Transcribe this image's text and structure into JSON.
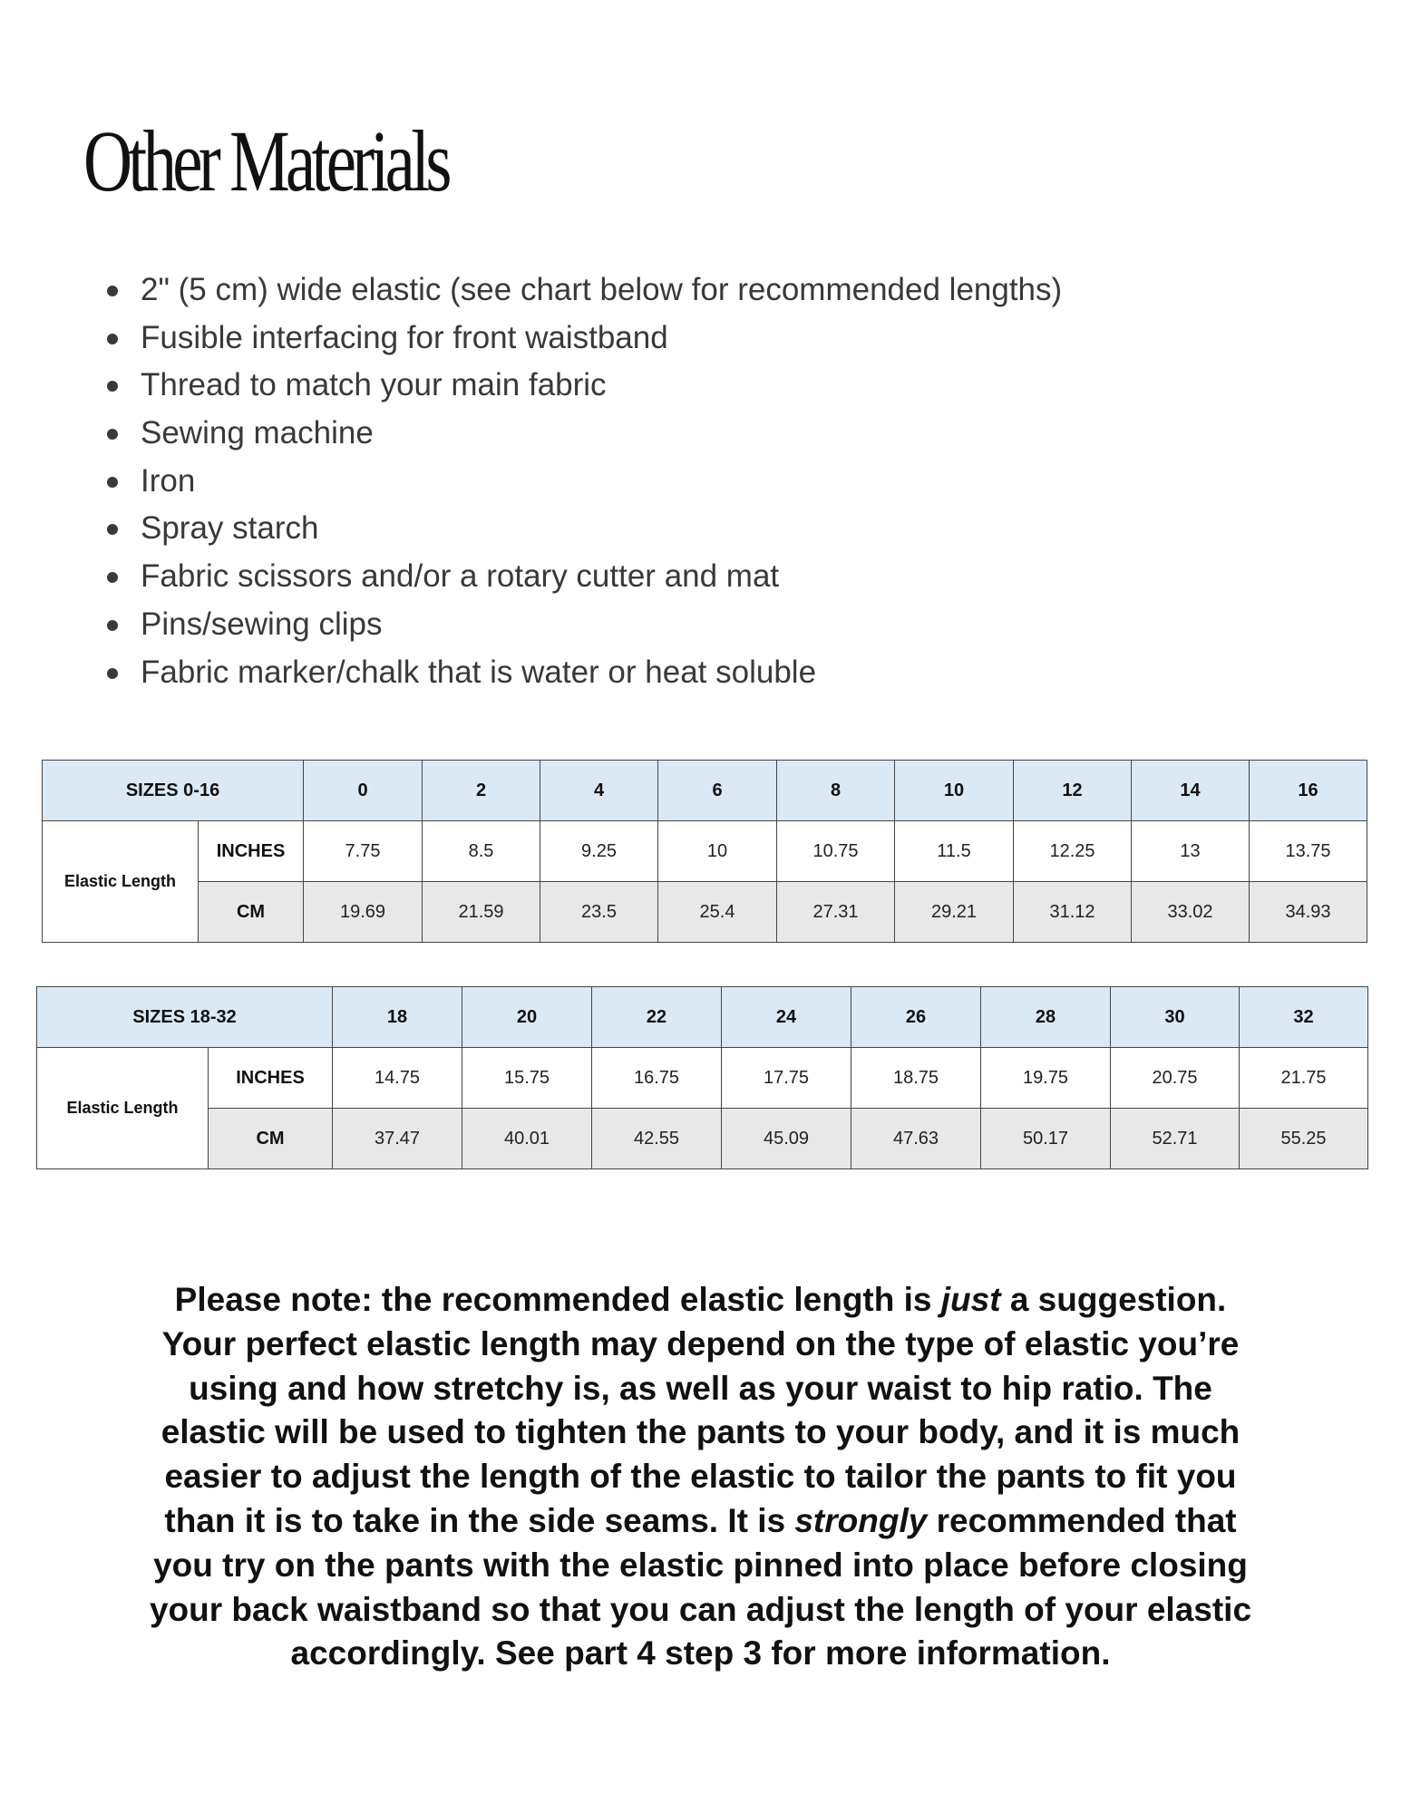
{
  "title": "Other Materials",
  "materials": [
    "2\" (5 cm) wide elastic (see chart below for recommended lengths)",
    "Fusible interfacing for front waistband",
    "Thread to match your main fabric",
    "Sewing machine",
    "Iron",
    "Spray starch",
    "Fabric scissors and/or a rotary cutter and mat",
    "Pins/sewing clips",
    "Fabric marker/chalk that is water or heat soluble"
  ],
  "tables": [
    {
      "header": "SIZES 0-16",
      "row_label": "Elastic Length",
      "inches_label": "INCHES",
      "cm_label": "CM",
      "sizes": [
        "0",
        "2",
        "4",
        "6",
        "8",
        "10",
        "12",
        "14",
        "16"
      ],
      "inches": [
        "7.75",
        "8.5",
        "9.25",
        "10",
        "10.75",
        "11.5",
        "12.25",
        "13",
        "13.75"
      ],
      "cm": [
        "19.69",
        "21.59",
        "23.5",
        "25.4",
        "27.31",
        "29.21",
        "31.12",
        "33.02",
        "34.93"
      ]
    },
    {
      "header": "SIZES 18-32",
      "row_label": "Elastic Length",
      "inches_label": "INCHES",
      "cm_label": "CM",
      "sizes": [
        "18",
        "20",
        "22",
        "24",
        "26",
        "28",
        "30",
        "32"
      ],
      "inches": [
        "14.75",
        "15.75",
        "16.75",
        "17.75",
        "18.75",
        "19.75",
        "20.75",
        "21.75"
      ],
      "cm": [
        "37.47",
        "40.01",
        "42.55",
        "45.09",
        "47.63",
        "50.17",
        "52.71",
        "55.25"
      ]
    }
  ],
  "colors": {
    "header_bg": "#dbe9f5",
    "cm_row_bg": "#e8e8e8"
  },
  "note_lines": [
    {
      "pre": "Please note: the recommended elastic length is ",
      "em": "just",
      "post": " a suggestion."
    },
    {
      "pre": "Your perfect elastic length may depend on the type of elastic you’re",
      "em": "",
      "post": ""
    },
    {
      "pre": "using and how stretchy is, as well as your waist to hip ratio. The",
      "em": "",
      "post": ""
    },
    {
      "pre": "elastic will be used to tighten the pants to your body, and it is much",
      "em": "",
      "post": ""
    },
    {
      "pre": "easier to adjust the length of the elastic to tailor the pants to fit you",
      "em": "",
      "post": ""
    },
    {
      "pre": "than it is to take in the side seams. It is ",
      "em": "strongly",
      "post": " recommended that"
    },
    {
      "pre": "you try on the pants with the elastic pinned into place before closing",
      "em": "",
      "post": ""
    },
    {
      "pre": "your back waistband so that you can adjust the length of your elastic",
      "em": "",
      "post": ""
    },
    {
      "pre": "accordingly. See part 4 step 3 for more information.",
      "em": "",
      "post": ""
    }
  ]
}
